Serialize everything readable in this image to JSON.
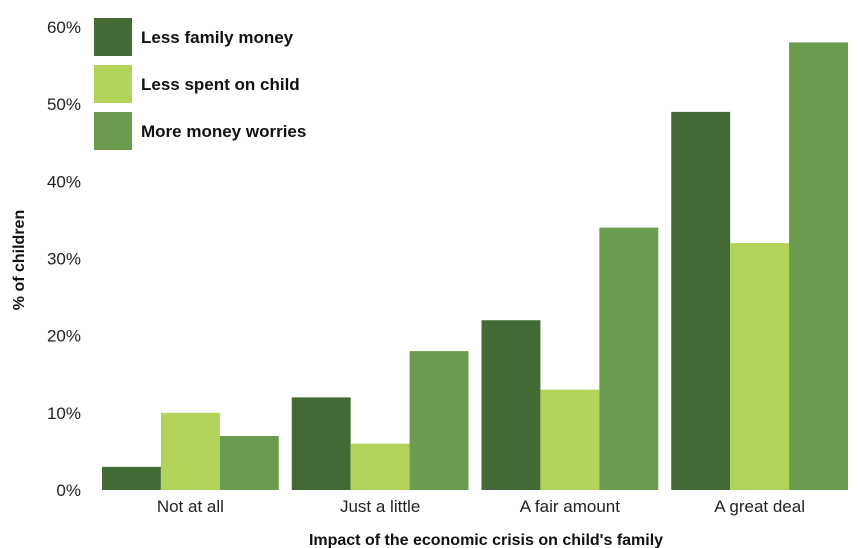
{
  "chart_data": {
    "type": "bar",
    "xlabel": "Impact of the economic crisis on child's family",
    "ylabel": "% of children",
    "categories": [
      "Not at all",
      "Just a little",
      "A fair amount",
      "A great deal"
    ],
    "series": [
      {
        "name": "Less family money",
        "values": [
          3,
          12,
          22,
          49
        ],
        "color": "#436a35"
      },
      {
        "name": "Less spent on child",
        "values": [
          10,
          6,
          13,
          32
        ],
        "color": "#b2d35a"
      },
      {
        "name": "More money worries",
        "values": [
          7,
          18,
          34,
          58
        ],
        "color": "#6a9b4e"
      }
    ],
    "yticks": [
      "0%",
      "10%",
      "20%",
      "30%",
      "40%",
      "50%",
      "60%"
    ],
    "ylim": [
      0,
      60
    ],
    "legend_position": "top-left",
    "grid": false
  }
}
